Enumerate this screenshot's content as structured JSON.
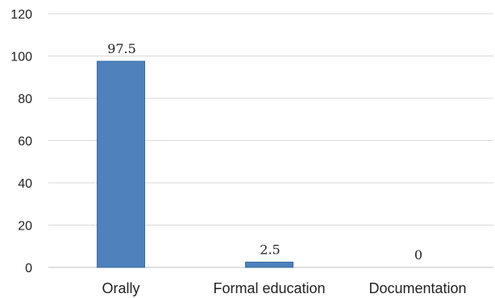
{
  "chart_data": {
    "type": "bar",
    "categories": [
      "Orally",
      "Formal education",
      "Documentation"
    ],
    "values": [
      97.5,
      2.5,
      0
    ],
    "data_labels": [
      "97.5",
      "2.5",
      "0"
    ],
    "y_ticks": [
      "0",
      "20",
      "40",
      "60",
      "80",
      "100",
      "120"
    ],
    "ylim": [
      0,
      120
    ],
    "grid": true,
    "legend": "none",
    "title": "",
    "xlabel": "",
    "ylabel": "",
    "colors": {
      "bar": "#4f81bd",
      "bar_edge": "#3a6a9f",
      "grid": "#d9d9d9",
      "axis": "#bfbfbf"
    }
  }
}
